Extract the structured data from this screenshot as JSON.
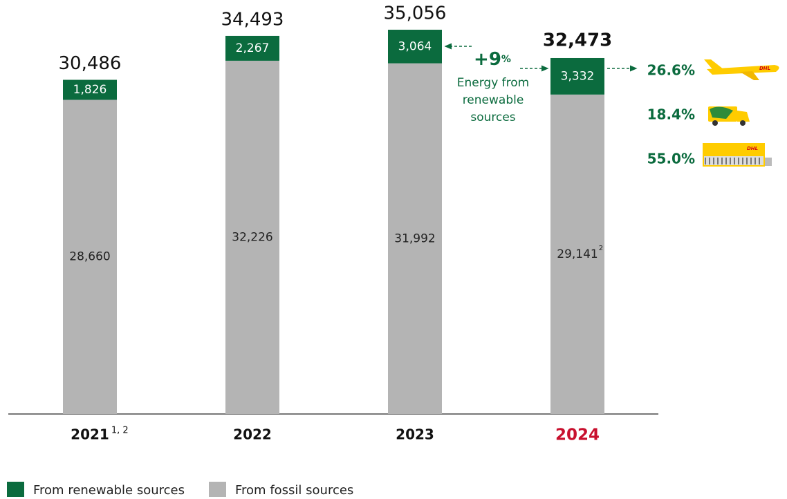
{
  "chart_data": {
    "type": "stacked_bar",
    "categories": [
      "2021",
      "2022",
      "2023",
      "2024"
    ],
    "category_notes": [
      "1, 2",
      null,
      null,
      null
    ],
    "category_colors": [
      "#111111",
      "#111111",
      "#111111",
      "#c8102e"
    ],
    "series": [
      {
        "name": "From renewable sources",
        "color": "#0b6b3e",
        "values": [
          1826,
          2267,
          3064,
          3332
        ],
        "value_labels": [
          "1,826",
          "2,267",
          "3,064",
          "3,332"
        ],
        "value_notes": [
          null,
          null,
          null,
          null
        ]
      },
      {
        "name": "From fossil sources",
        "color": "#b4b4b4",
        "values": [
          28660,
          32226,
          31992,
          29141
        ],
        "value_labels": [
          "28,660",
          "32,226",
          "31,992",
          "29,141"
        ],
        "value_notes": [
          null,
          null,
          null,
          "2"
        ]
      }
    ],
    "totals": [
      30486,
      34493,
      35056,
      32473
    ],
    "total_labels": [
      "30,486",
      "34,493",
      "35,056",
      "32,473"
    ],
    "growth_annotation": {
      "value_text": "+9",
      "unit": "%",
      "text": "Energy from renewable sources"
    },
    "renewable_shares": [
      "26.6%",
      "18.4%",
      "55.0%"
    ]
  }
}
